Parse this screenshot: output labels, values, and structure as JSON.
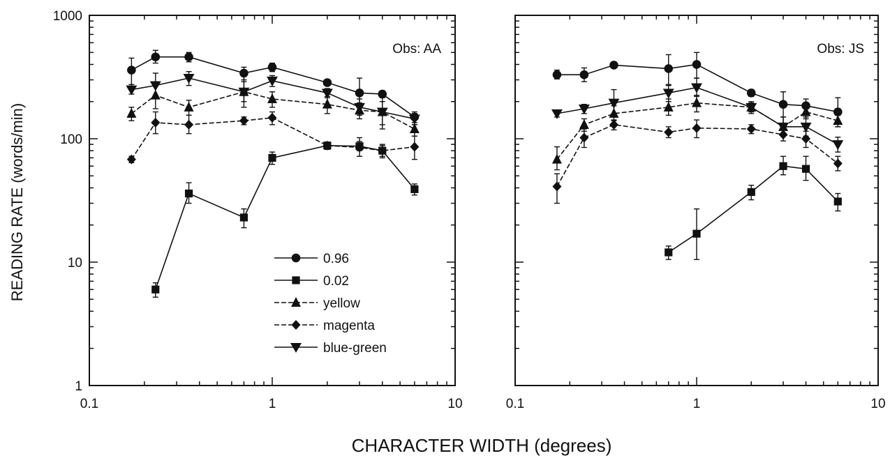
{
  "figure": {
    "ylabel": "READING RATE (words/min)",
    "xlabel": "CHARACTER WIDTH (degrees)"
  },
  "colors": {
    "ink": "#111111",
    "background": "#ffffff"
  },
  "chart_data": [
    {
      "type": "line",
      "title": "",
      "annotation": "Obs:  AA",
      "x_scale": "log",
      "y_scale": "log",
      "xlim": [
        0.1,
        10
      ],
      "ylim": [
        1,
        1000
      ],
      "x_ticks": [
        0.1,
        1,
        10
      ],
      "x_tick_labels": [
        "0.1",
        "1",
        "10"
      ],
      "y_ticks": [
        1,
        10,
        100,
        1000
      ],
      "y_tick_labels": [
        "1",
        "10",
        "100",
        "1000"
      ],
      "legend": "bottom-right",
      "grid": false,
      "series": [
        {
          "name": "0.96",
          "marker": "circle",
          "dashed": false,
          "x": [
            0.17,
            0.23,
            0.35,
            0.7,
            1.0,
            2.0,
            3.0,
            4.0,
            6.0
          ],
          "y": [
            360,
            460,
            460,
            340,
            380,
            285,
            235,
            230,
            150
          ],
          "err": [
            [
              260,
              450
            ],
            [
              410,
              520
            ],
            [
              420,
              500
            ],
            [
              300,
              380
            ],
            [
              350,
              410
            ],
            [
              270,
              300
            ],
            [
              180,
              310
            ],
            [
              215,
              245
            ],
            [
              130,
              165
            ]
          ]
        },
        {
          "name": "0.02",
          "marker": "square",
          "dashed": false,
          "x": [
            0.23,
            0.35,
            0.7,
            1.0,
            2.0,
            3.0,
            4.0,
            6.0
          ],
          "y": [
            6,
            36,
            23,
            70,
            88,
            87,
            80,
            39
          ],
          "err": [
            [
              5.2,
              6.8
            ],
            [
              30,
              44
            ],
            [
              19,
              27
            ],
            [
              62,
              78
            ],
            [
              82,
              94
            ],
            [
              80,
              95
            ],
            [
              72,
              88
            ],
            [
              35,
              43
            ]
          ]
        },
        {
          "name": "yellow",
          "marker": "triangle-up",
          "dashed": true,
          "x": [
            0.17,
            0.23,
            0.35,
            0.7,
            1.0,
            2.0,
            3.0,
            4.0,
            6.0
          ],
          "y": [
            160,
            225,
            180,
            240,
            210,
            190,
            170,
            165,
            120
          ],
          "err": [
            [
              140,
              180
            ],
            [
              175,
              290
            ],
            [
              155,
              205
            ],
            [
              180,
              320
            ],
            [
              180,
              240
            ],
            [
              160,
              220
            ],
            [
              145,
              195
            ],
            [
              130,
              200
            ],
            [
              105,
              135
            ]
          ]
        },
        {
          "name": "magenta",
          "marker": "diamond",
          "dashed": true,
          "x": [
            0.17,
            0.23,
            0.35,
            0.7,
            1.0,
            2.0,
            3.0,
            4.0,
            6.0
          ],
          "y": [
            68,
            135,
            130,
            140,
            148,
            88,
            85,
            80,
            86
          ],
          "err": [
            [
              64,
              72
            ],
            [
              110,
              165
            ],
            [
              110,
              155
            ],
            [
              130,
              150
            ],
            [
              130,
              165
            ],
            [
              82,
              94
            ],
            [
              72,
              102
            ],
            [
              70,
              90
            ],
            [
              68,
              105
            ]
          ]
        },
        {
          "name": "blue-green",
          "marker": "triangle-down",
          "dashed": false,
          "x": [
            0.17,
            0.23,
            0.35,
            0.7,
            1.0,
            2.0,
            3.0,
            4.0,
            6.0
          ],
          "y": [
            250,
            270,
            310,
            240,
            295,
            235,
            180,
            165,
            145
          ],
          "err": [
            [
              230,
              275
            ],
            [
              215,
              340
            ],
            [
              270,
              350
            ],
            [
              200,
              290
            ],
            [
              265,
              325
            ],
            [
              215,
              255
            ],
            [
              155,
              210
            ],
            [
              120,
              230
            ],
            [
              130,
              160
            ]
          ]
        }
      ]
    },
    {
      "type": "line",
      "title": "",
      "annotation": "Obs:  JS",
      "x_scale": "log",
      "y_scale": "log",
      "xlim": [
        0.1,
        10
      ],
      "ylim": [
        1,
        1000
      ],
      "x_ticks": [
        0.1,
        1,
        10
      ],
      "x_tick_labels": [
        "0.1",
        "1",
        "10"
      ],
      "y_ticks": [
        1,
        10,
        100,
        1000
      ],
      "y_tick_labels": [],
      "grid": false,
      "series": [
        {
          "name": "0.96",
          "marker": "circle",
          "dashed": false,
          "x": [
            0.17,
            0.24,
            0.35,
            0.7,
            1.0,
            2.0,
            3.0,
            4.0,
            6.0
          ],
          "y": [
            330,
            330,
            395,
            370,
            400,
            235,
            190,
            185,
            165
          ],
          "err": [
            [
              305,
              360
            ],
            [
              290,
              375
            ],
            [
              380,
              410
            ],
            [
              270,
              480
            ],
            [
              310,
              500
            ],
            [
              220,
              250
            ],
            [
              150,
              240
            ],
            [
              160,
              210
            ],
            [
              125,
              215
            ]
          ]
        },
        {
          "name": "0.02",
          "marker": "square",
          "dashed": false,
          "x": [
            0.7,
            1.0,
            2.0,
            3.0,
            4.0,
            6.0
          ],
          "y": [
            12,
            17,
            37,
            60,
            57,
            31
          ],
          "err": [
            [
              10.5,
              13.5
            ],
            [
              10.5,
              27
            ],
            [
              32,
              42
            ],
            [
              51,
              72
            ],
            [
              46,
              72
            ],
            [
              26,
              36
            ]
          ]
        },
        {
          "name": "yellow",
          "marker": "triangle-up",
          "dashed": true,
          "x": [
            0.17,
            0.24,
            0.35,
            0.7,
            1.0,
            2.0,
            3.0,
            4.0,
            6.0
          ],
          "y": [
            68,
            130,
            160,
            180,
            195,
            180,
            125,
            165,
            140
          ],
          "err": [
            [
              56,
              86
            ],
            [
              115,
              145
            ],
            [
              140,
              185
            ],
            [
              155,
              210
            ],
            [
              165,
              225
            ],
            [
              160,
              200
            ],
            [
              105,
              150
            ],
            [
              145,
              185
            ],
            [
              125,
              155
            ]
          ]
        },
        {
          "name": "magenta",
          "marker": "diamond",
          "dashed": true,
          "x": [
            0.17,
            0.24,
            0.35,
            0.7,
            1.0,
            2.0,
            3.0,
            4.0,
            6.0
          ],
          "y": [
            41,
            102,
            130,
            113,
            122,
            120,
            108,
            100,
            63
          ],
          "err": [
            [
              30,
              52
            ],
            [
              85,
              120
            ],
            [
              118,
              142
            ],
            [
              102,
              125
            ],
            [
              102,
              142
            ],
            [
              110,
              130
            ],
            [
              96,
              120
            ],
            [
              85,
              115
            ],
            [
              55,
              72
            ]
          ]
        },
        {
          "name": "blue-green",
          "marker": "triangle-down",
          "dashed": false,
          "x": [
            0.17,
            0.24,
            0.35,
            0.7,
            1.0,
            2.0,
            3.0,
            4.0,
            6.0
          ],
          "y": [
            160,
            175,
            195,
            235,
            260,
            180,
            125,
            125,
            90
          ],
          "err": [
            [
              150,
              170
            ],
            [
              160,
              190
            ],
            [
              155,
              250
            ],
            [
              200,
              275
            ],
            [
              220,
              310
            ],
            [
              165,
              195
            ],
            [
              105,
              150
            ],
            [
              105,
              150
            ],
            [
              78,
              103
            ]
          ]
        }
      ]
    }
  ]
}
